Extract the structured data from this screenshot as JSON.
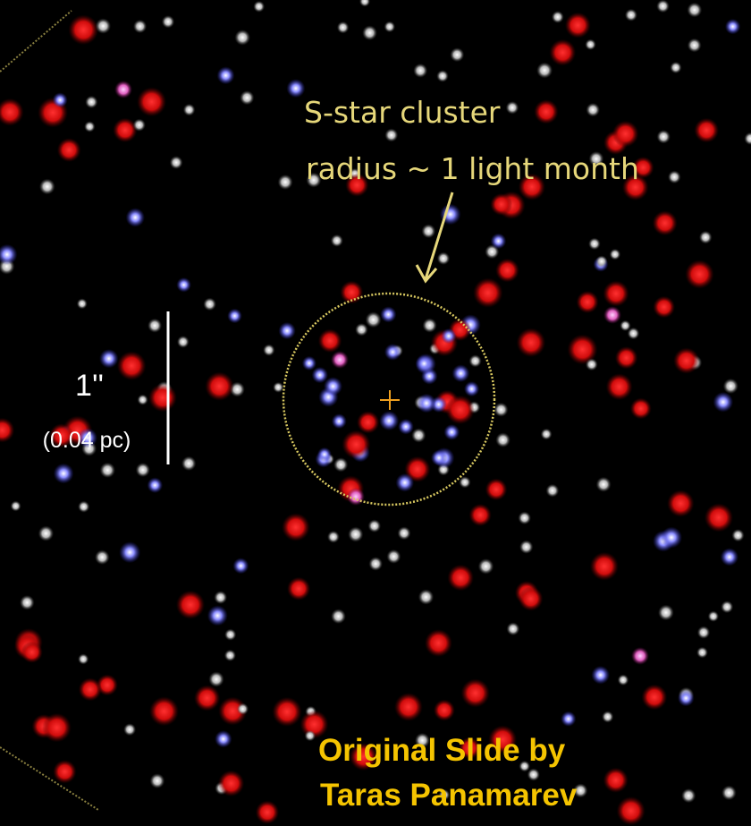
{
  "annotation": {
    "title": "S-star cluster",
    "subtitle": "radius ~ 1 light month"
  },
  "scale_bar": {
    "label": "1''",
    "sublabel": "(0.04 pc)"
  },
  "credit": {
    "line1": "Original Slide by",
    "line2": "Taras Panamarev"
  }
}
